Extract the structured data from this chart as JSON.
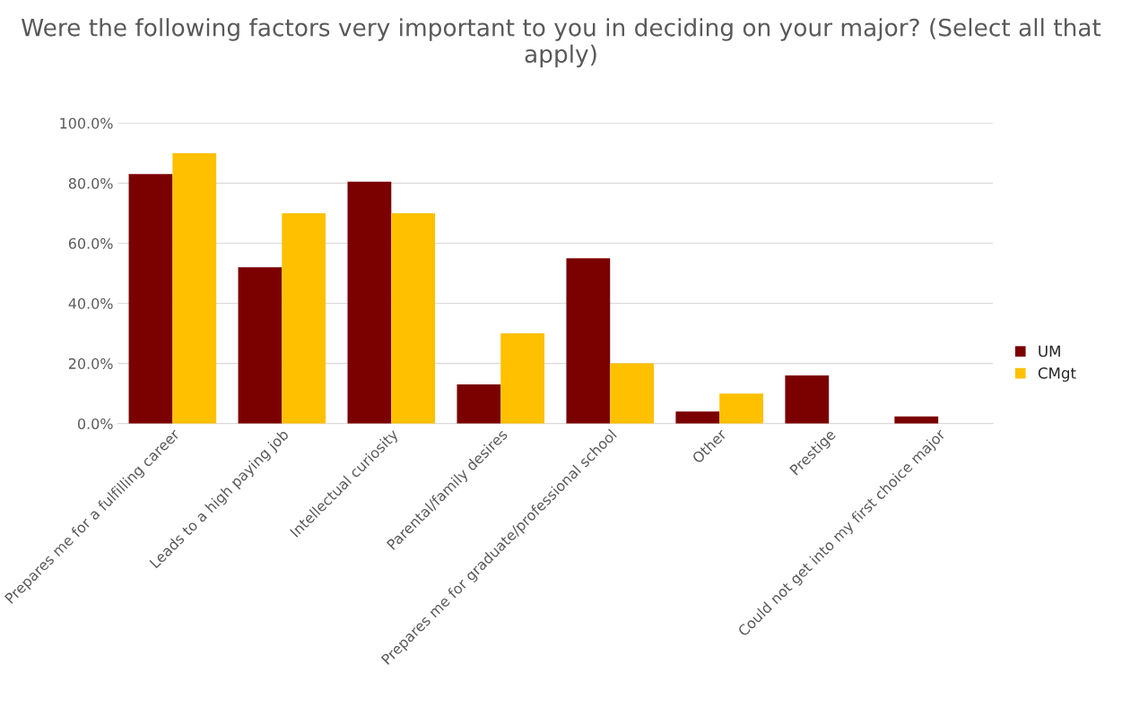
{
  "chart_data": {
    "type": "bar",
    "title": "Were the following factors very important to you in deciding on your major? (Select all that apply)",
    "categories": [
      "Prepares me for a fulfilling career",
      "Leads to a high paying job",
      "Intellectual curiosity",
      "Parental/family desires",
      "Prepares me for graduate/professional school",
      "Other",
      "Prestige",
      "Could not get into my first choice major"
    ],
    "series": [
      {
        "name": "UM",
        "color": "#7b0000",
        "values": [
          83,
          52,
          80.5,
          13,
          55,
          4,
          16,
          2.4
        ]
      },
      {
        "name": "CMgt",
        "color": "#ffc000",
        "values": [
          90,
          70,
          70,
          30,
          20,
          10,
          null,
          null
        ]
      }
    ],
    "ylim": [
      0,
      100
    ],
    "yticks": [
      {
        "value": 0,
        "label": "0.0%"
      },
      {
        "value": 20,
        "label": "20.0%"
      },
      {
        "value": 40,
        "label": "40.0%"
      },
      {
        "value": 60,
        "label": "60.0%"
      },
      {
        "value": 80,
        "label": "80.0%"
      },
      {
        "value": 100,
        "label": "100.0%"
      }
    ],
    "grid": "y",
    "legend": "right"
  }
}
